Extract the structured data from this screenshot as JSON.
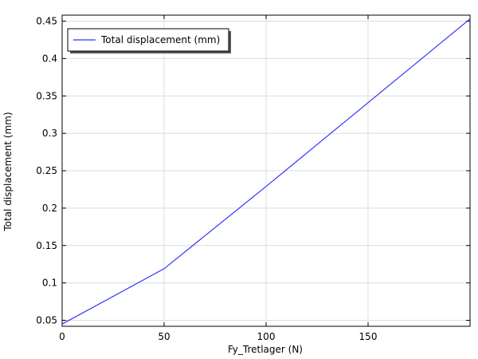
{
  "chart_data": {
    "type": "line",
    "title": "",
    "xlabel": "Fy_Tretlager (N)",
    "ylabel": "Total displacement (mm)",
    "xlim": [
      0,
      200
    ],
    "ylim": [
      0.042,
      0.458
    ],
    "xticks": [
      0,
      50,
      100,
      150
    ],
    "yticks": [
      0.05,
      0.1,
      0.15,
      0.2,
      0.25,
      0.3,
      0.35,
      0.4,
      0.45
    ],
    "xtick_labels": [
      "0",
      "50",
      "100",
      "150"
    ],
    "ytick_labels": [
      "0.05",
      "0.1",
      "0.15",
      "0.2",
      "0.25",
      "0.3",
      "0.35",
      "0.4",
      "0.45"
    ],
    "grid": true,
    "legend_position": "top-left",
    "series": [
      {
        "name": "Total displacement (mm)",
        "color": "#3333ff",
        "x": [
          0,
          50,
          100,
          150,
          200
        ],
        "y": [
          0.045,
          0.119,
          0.229,
          0.341,
          0.453
        ]
      }
    ]
  }
}
